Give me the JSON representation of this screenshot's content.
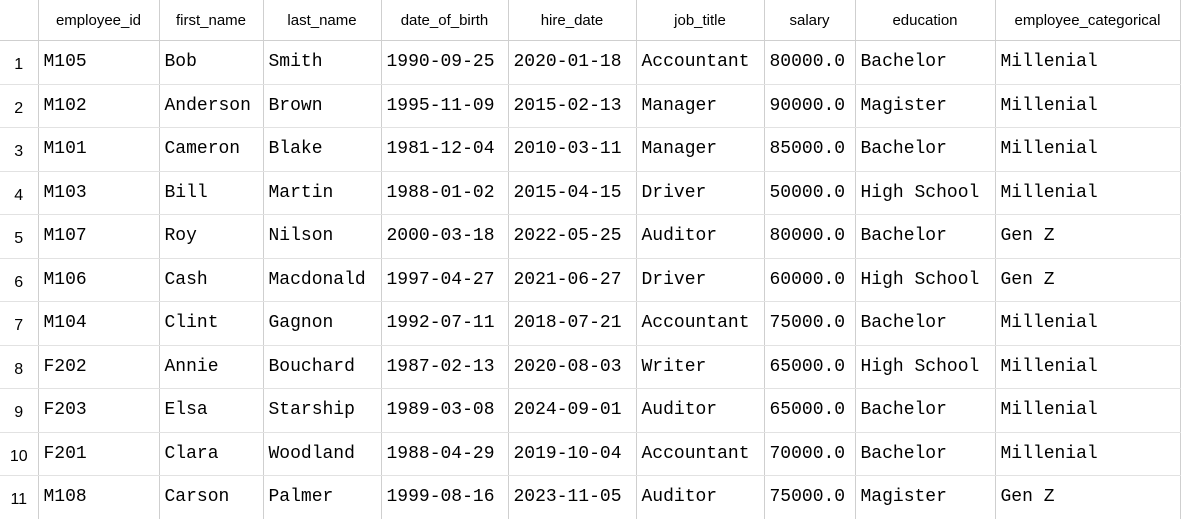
{
  "table": {
    "columns": [
      "employee_id",
      "first_name",
      "last_name",
      "date_of_birth",
      "hire_date",
      "job_title",
      "salary",
      "education",
      "employee_categorical"
    ],
    "rows": [
      {
        "index": "1",
        "cells": [
          "M105",
          "Bob",
          "Smith",
          "1990-09-25",
          "2020-01-18",
          "Accountant",
          "80000.0",
          "Bachelor",
          "Millenial"
        ]
      },
      {
        "index": "2",
        "cells": [
          "M102",
          "Anderson",
          "Brown",
          "1995-11-09",
          "2015-02-13",
          "Manager",
          "90000.0",
          "Magister",
          "Millenial"
        ]
      },
      {
        "index": "3",
        "cells": [
          "M101",
          "Cameron",
          "Blake",
          "1981-12-04",
          "2010-03-11",
          "Manager",
          "85000.0",
          "Bachelor",
          "Millenial"
        ]
      },
      {
        "index": "4",
        "cells": [
          "M103",
          "Bill",
          "Martin",
          "1988-01-02",
          "2015-04-15",
          "Driver",
          "50000.0",
          "High School",
          "Millenial"
        ]
      },
      {
        "index": "5",
        "cells": [
          "M107",
          "Roy",
          "Nilson",
          "2000-03-18",
          "2022-05-25",
          "Auditor",
          "80000.0",
          "Bachelor",
          "Gen Z"
        ]
      },
      {
        "index": "6",
        "cells": [
          "M106",
          "Cash",
          "Macdonald",
          "1997-04-27",
          "2021-06-27",
          "Driver",
          "60000.0",
          "High School",
          "Gen Z"
        ]
      },
      {
        "index": "7",
        "cells": [
          "M104",
          "Clint",
          "Gagnon",
          "1992-07-11",
          "2018-07-21",
          "Accountant",
          "75000.0",
          "Bachelor",
          "Millenial"
        ]
      },
      {
        "index": "8",
        "cells": [
          "F202",
          "Annie",
          "Bouchard",
          "1987-02-13",
          "2020-08-03",
          "Writer",
          "65000.0",
          "High School",
          "Millenial"
        ]
      },
      {
        "index": "9",
        "cells": [
          "F203",
          "Elsa",
          "Starship",
          "1989-03-08",
          "2024-09-01",
          "Auditor",
          "65000.0",
          "Bachelor",
          "Millenial"
        ]
      },
      {
        "index": "10",
        "cells": [
          "F201",
          "Clara",
          "Woodland",
          "1988-04-29",
          "2019-10-04",
          "Accountant",
          "70000.0",
          "Bachelor",
          "Millenial"
        ]
      },
      {
        "index": "11",
        "cells": [
          "M108",
          "Carson",
          "Palmer",
          "1999-08-16",
          "2023-11-05",
          "Auditor",
          "75000.0",
          "Magister",
          "Gen Z"
        ]
      }
    ]
  }
}
